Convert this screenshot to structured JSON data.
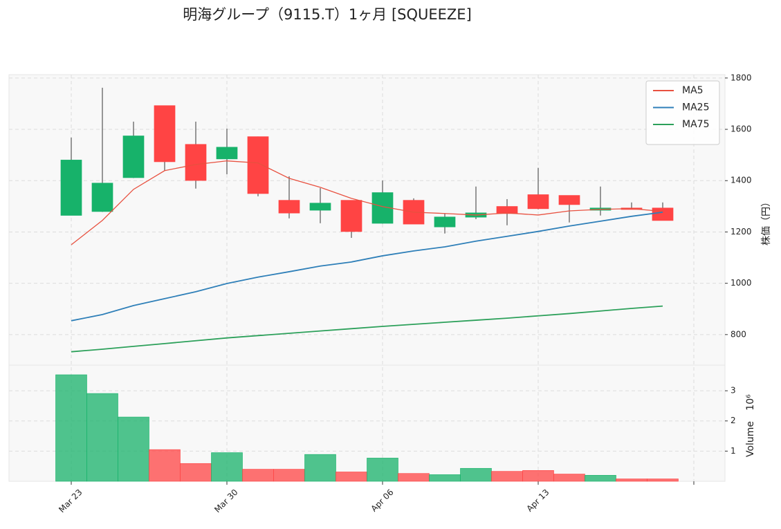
{
  "chart_data": {
    "type": "candlestick",
    "title": "明海グループ（9115.T）1ヶ月 [SQUEEZE]",
    "categories": [
      "Mar 23",
      null,
      null,
      null,
      null,
      "Mar 30",
      null,
      null,
      null,
      null,
      "Apr 06",
      null,
      null,
      null,
      null,
      "Apr 13",
      null,
      null,
      null,
      null
    ],
    "xticks": [
      0,
      5,
      10,
      15,
      20
    ],
    "xlim": [
      -2,
      21
    ],
    "open": [
      1265,
      1280,
      1412,
      1692,
      1541,
      1485,
      1571,
      1323,
      1285,
      1323,
      1234,
      1323,
      1220,
      1258,
      1299,
      1345,
      1342,
      1285,
      1293,
      1293
    ],
    "high": [
      1568,
      1762,
      1630,
      1692,
      1630,
      1603,
      1572,
      1417,
      1371,
      1323,
      1401,
      1331,
      1272,
      1377,
      1328,
      1450,
      1342,
      1377,
      1315,
      1315
    ],
    "low": [
      1265,
      1278,
      1410,
      1440,
      1369,
      1425,
      1339,
      1253,
      1234,
      1177,
      1232,
      1231,
      1194,
      1250,
      1226,
      1288,
      1237,
      1264,
      1288,
      1245
    ],
    "close": [
      1480,
      1390,
      1574,
      1474,
      1401,
      1530,
      1350,
      1274,
      1312,
      1202,
      1353,
      1231,
      1258,
      1274,
      1272,
      1291,
      1307,
      1293,
      1288,
      1245
    ],
    "up_color": "#17b26a",
    "down_color": "#ff4444",
    "ylim": [
      681,
      1813
    ],
    "yticks": [
      800,
      1000,
      1200,
      1400,
      1600,
      1800
    ],
    "ylabel": "株価（円）",
    "grid": true,
    "legend": "upper right",
    "series": [
      {
        "name": "MA5",
        "color": "#e8503f",
        "values": [
          1150,
          1245,
          1366,
          1439,
          1463,
          1477,
          1469,
          1409,
          1374,
          1331,
          1299,
          1277,
          1272,
          1266,
          1274,
          1266,
          1282,
          1288,
          1291,
          1280
        ]
      },
      {
        "name": "MA25",
        "color": "#2e7fb8",
        "values": [
          854,
          878,
          913,
          940,
          967,
          999,
          1024,
          1045,
          1067,
          1083,
          1107,
          1126,
          1142,
          1164,
          1183,
          1202,
          1223,
          1242,
          1261,
          1277
        ]
      },
      {
        "name": "MA75",
        "color": "#2ca05a",
        "values": [
          733,
          743,
          754,
          765,
          776,
          787,
          796,
          805,
          814,
          823,
          832,
          840,
          848,
          856,
          864,
          873,
          882,
          892,
          902,
          911
        ]
      }
    ],
    "volume": {
      "values": [
        3.53,
        2.91,
        2.13,
        1.05,
        0.59,
        0.95,
        0.4,
        0.4,
        0.89,
        0.31,
        0.77,
        0.26,
        0.22,
        0.43,
        0.33,
        0.36,
        0.24,
        0.2,
        0.08,
        0.08
      ],
      "ylim": [
        0,
        3.85
      ],
      "yticks": [
        1,
        2,
        3
      ],
      "ylabel": "Volume",
      "offset_label": "10⁶"
    }
  }
}
